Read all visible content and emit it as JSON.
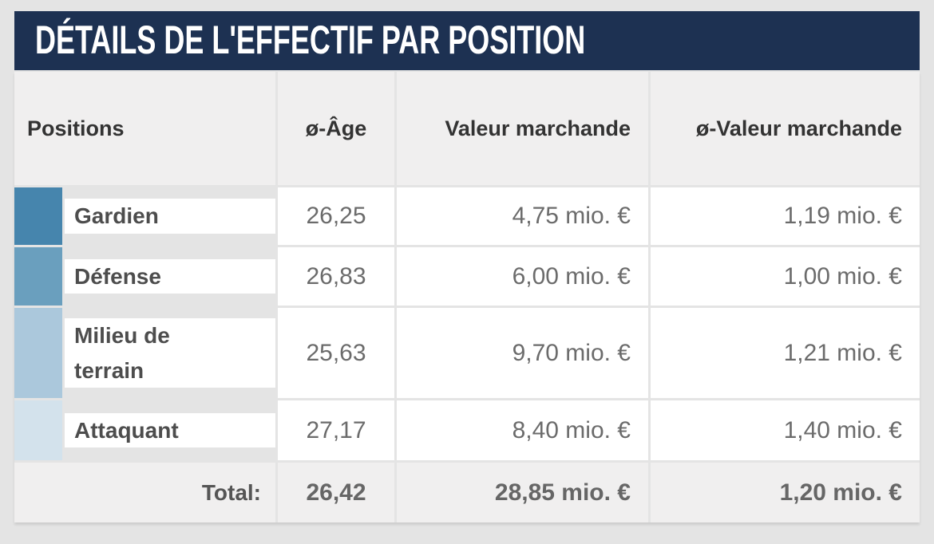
{
  "title": "DÉTAILS DE L'EFFECTIF PAR POSITION",
  "table": {
    "columns": [
      "Positions",
      "ø-Âge",
      "Valeur marchande",
      "ø-Valeur marchande"
    ],
    "rows": [
      {
        "position": "Gardien",
        "color": "#4685ad",
        "avg_age": "26,25",
        "market_value": "4,75 mio. €",
        "avg_market_value": "1,19 mio. €"
      },
      {
        "position": "Défense",
        "color": "#6a9fbe",
        "avg_age": "26,83",
        "market_value": "6,00 mio. €",
        "avg_market_value": "1,00 mio. €"
      },
      {
        "position": "Milieu de terrain",
        "color": "#abc8dc",
        "avg_age": "25,63",
        "market_value": "9,70 mio. €",
        "avg_market_value": "1,21 mio. €"
      },
      {
        "position": "Attaquant",
        "color": "#d3e2ec",
        "avg_age": "27,17",
        "market_value": "8,40 mio. €",
        "avg_market_value": "1,40 mio. €"
      }
    ],
    "total": {
      "label": "Total:",
      "avg_age": "26,42",
      "market_value": "28,85 mio. €",
      "avg_market_value": "1,20 mio. €"
    }
  },
  "colors": {
    "header_bar": "#1d3152",
    "header_row_bg": "#f0efef",
    "page_bg": "#e4e4e4",
    "cell_bg": "#ffffff"
  }
}
